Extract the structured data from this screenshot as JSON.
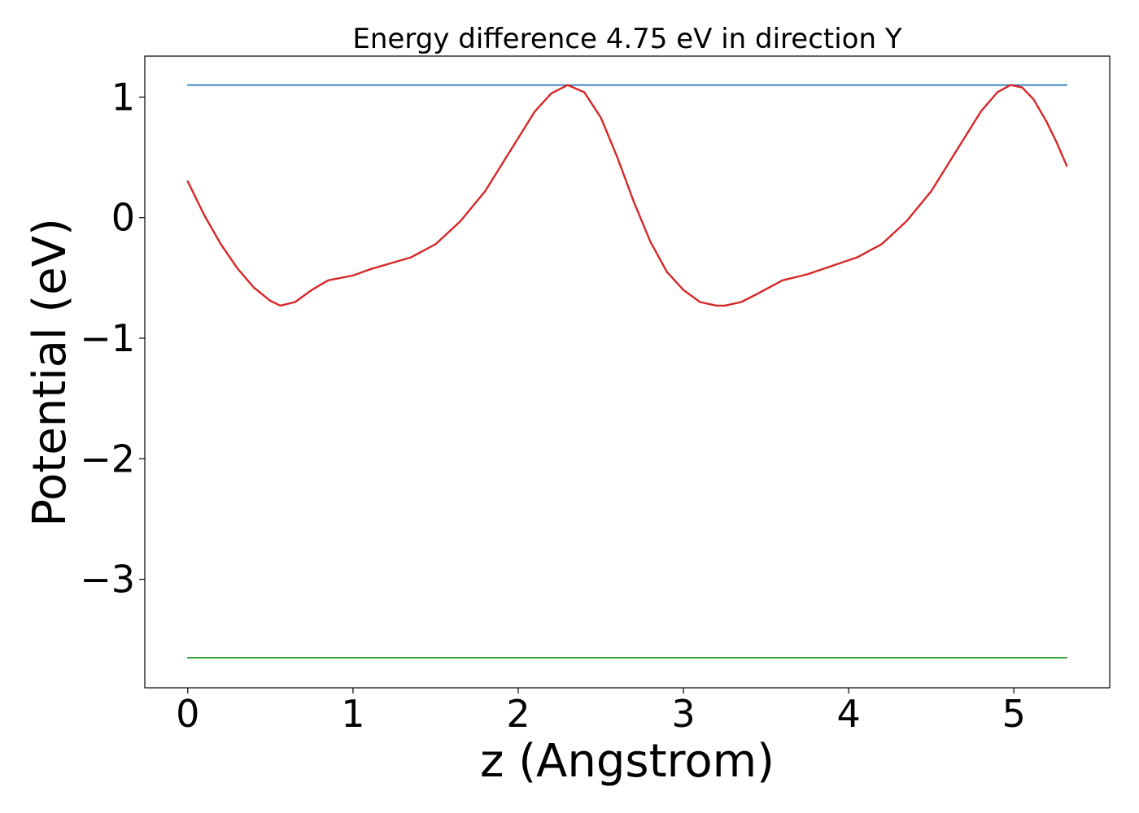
{
  "chart_data": {
    "type": "line",
    "title": "Energy difference 4.75 eV in direction Y",
    "xlabel": "z (Angstrom)",
    "ylabel": "Potential (eV)",
    "xlim": [
      -0.26,
      5.58
    ],
    "ylim": [
      -3.9,
      1.34
    ],
    "xticks": [
      0,
      1,
      2,
      3,
      4,
      5
    ],
    "xtick_labels": [
      "0",
      "1",
      "2",
      "3",
      "4",
      "5"
    ],
    "yticks": [
      1,
      0,
      -1,
      -2,
      -3
    ],
    "ytick_labels": [
      "1",
      "0",
      "−1",
      "−2",
      "−3"
    ],
    "grid": false,
    "series": [
      {
        "color": "#1f77b4",
        "x": [
          0,
          5.32
        ],
        "y": [
          1.1,
          1.1
        ]
      },
      {
        "color": "#2ca02c",
        "x": [
          0,
          5.32
        ],
        "y": [
          -3.65,
          -3.65
        ]
      },
      {
        "color": "#d62728",
        "x": [
          0,
          0.1,
          0.2,
          0.3,
          0.4,
          0.5,
          0.56,
          0.65,
          0.75,
          0.85,
          1.0,
          1.1,
          1.2,
          1.35,
          1.5,
          1.65,
          1.8,
          1.95,
          2.1,
          2.2,
          2.3,
          2.4,
          2.5,
          2.6,
          2.7,
          2.8,
          2.9,
          3.0,
          3.1,
          3.2,
          3.25,
          3.35,
          3.45,
          3.6,
          3.75,
          3.9,
          4.05,
          4.2,
          4.35,
          4.5,
          4.65,
          4.8,
          4.9,
          4.98,
          5.05,
          5.12,
          5.2,
          5.26,
          5.32
        ],
        "y": [
          0.3,
          0.02,
          -0.22,
          -0.42,
          -0.58,
          -0.69,
          -0.73,
          -0.7,
          -0.6,
          -0.52,
          -0.48,
          -0.43,
          -0.39,
          -0.33,
          -0.22,
          -0.03,
          0.22,
          0.55,
          0.88,
          1.03,
          1.1,
          1.04,
          0.83,
          0.5,
          0.13,
          -0.2,
          -0.45,
          -0.6,
          -0.7,
          -0.73,
          -0.73,
          -0.7,
          -0.63,
          -0.52,
          -0.47,
          -0.4,
          -0.33,
          -0.22,
          -0.03,
          0.22,
          0.55,
          0.88,
          1.04,
          1.1,
          1.08,
          0.98,
          0.79,
          0.62,
          0.43
        ]
      }
    ]
  }
}
